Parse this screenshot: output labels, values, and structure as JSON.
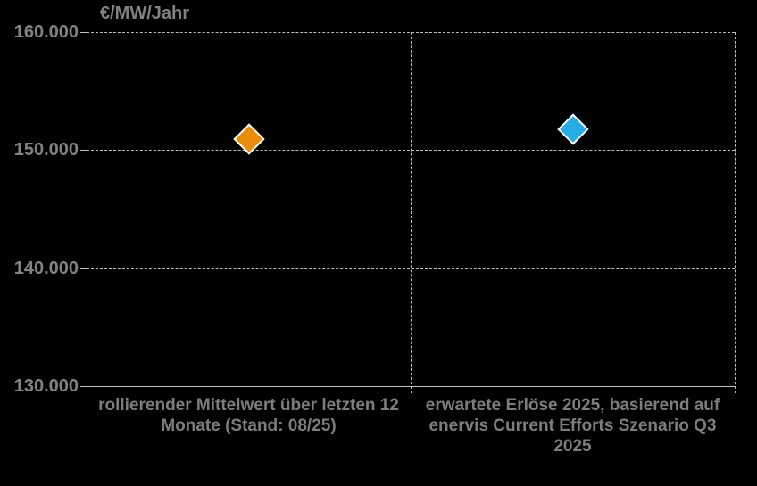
{
  "page": {
    "background": "#000000"
  },
  "chart_data": {
    "type": "scatter",
    "title": "",
    "ylabel": "€/MW/Jahr",
    "xlabel": "",
    "ylim": [
      130000,
      160000
    ],
    "grid": "dashed horizontal gridlines and dashed vertical category dividers",
    "legend_position": "none",
    "background": "#000000",
    "axis_color": "#c2c2c2",
    "grid_color": "#bdbdbd",
    "text_color": "#828282",
    "yticks": [
      {
        "value": 160000,
        "label": "160.000"
      },
      {
        "value": 150000,
        "label": "150.000"
      },
      {
        "value": 140000,
        "label": "140.000"
      },
      {
        "value": 130000,
        "label": "130.000"
      }
    ],
    "categories": [
      {
        "label": "rollierender Mittelwert über letzten 12 Monate (Stand: 08/25)",
        "lines": [
          "rollierender Mittelwert über letzten 12",
          "Monate (Stand: 08/25)"
        ]
      },
      {
        "label": "erwartete Erlöse 2025, basierend auf enervis Current Efforts Szenario Q3 2025",
        "lines": [
          "erwartete Erlöse 2025, basierend auf",
          "enervis Current Efforts Szenario Q3",
          "2025"
        ]
      }
    ],
    "points": [
      {
        "name": "rolling-12m-average-point",
        "category_index": 0,
        "value": 150900,
        "value_label": "~150.900 €/MW/Jahr",
        "marker": "diamond",
        "fill": "#ed8c0a",
        "outline": "#ffffff"
      },
      {
        "name": "expected-2025-revenue-point",
        "category_index": 1,
        "value": 151800,
        "value_label": "~151.800 €/MW/Jahr",
        "marker": "diamond",
        "fill": "#25aee6",
        "outline": "#ffffff"
      }
    ]
  }
}
